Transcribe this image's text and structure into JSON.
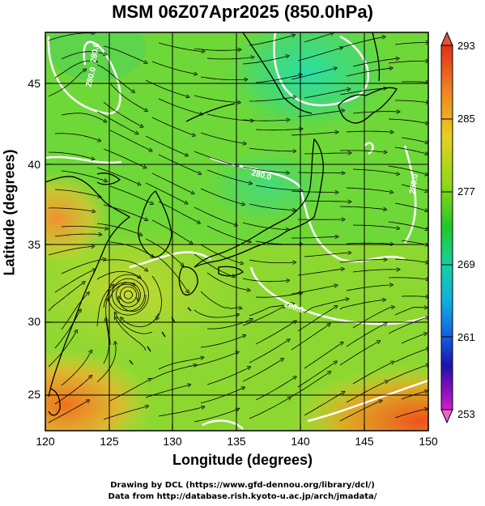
{
  "title": "MSM 06Z07Apr2025 (850.0hPa)",
  "axes": {
    "xlabel": "Longitude (degrees)",
    "ylabel": "Latitude (degrees)",
    "xticks": [
      "120",
      "125",
      "130",
      "135",
      "140",
      "145",
      "150"
    ],
    "yticks": [
      "25",
      "30",
      "35",
      "40",
      "45"
    ]
  },
  "colorbar": {
    "labels": [
      "293",
      "285",
      "277",
      "269",
      "261",
      "253"
    ],
    "min": 253,
    "max": 293
  },
  "contour_labels": [
    "280.0",
    "280.0",
    "280.0",
    "280.0",
    "280.0"
  ],
  "credits": {
    "line1": "Drawing by DCL (https://www.gfd-dennou.org/library/dcl/)",
    "line2": "Data from http://database.rish.kyoto-u.ac.jp/arch/jmadata/"
  },
  "chart_data": {
    "type": "heatmap",
    "title": "MSM 06Z07Apr2025 (850.0hPa)",
    "xlabel": "Longitude (degrees)",
    "ylabel": "Latitude (degrees)",
    "xlim": [
      120,
      150
    ],
    "ylim": [
      22.4,
      47.6
    ],
    "colorbar_range": [
      253,
      293
    ],
    "colorbar_ticks": [
      293,
      285,
      277,
      269,
      261,
      253
    ],
    "contour_level": 280.0,
    "cyclone_center": [
      126.5,
      31.0
    ],
    "temperature_samples_K": [
      {
        "lon": 122,
        "lat": 46,
        "value": 279
      },
      {
        "lon": 138,
        "lat": 45,
        "value": 273
      },
      {
        "lon": 121,
        "lat": 37,
        "value": 285
      },
      {
        "lon": 135,
        "lat": 37,
        "value": 276
      },
      {
        "lon": 126,
        "lat": 31,
        "value": 282
      },
      {
        "lon": 140,
        "lat": 30,
        "value": 279
      },
      {
        "lon": 121,
        "lat": 24,
        "value": 287
      },
      {
        "lon": 148,
        "lat": 24,
        "value": 288
      }
    ]
  }
}
